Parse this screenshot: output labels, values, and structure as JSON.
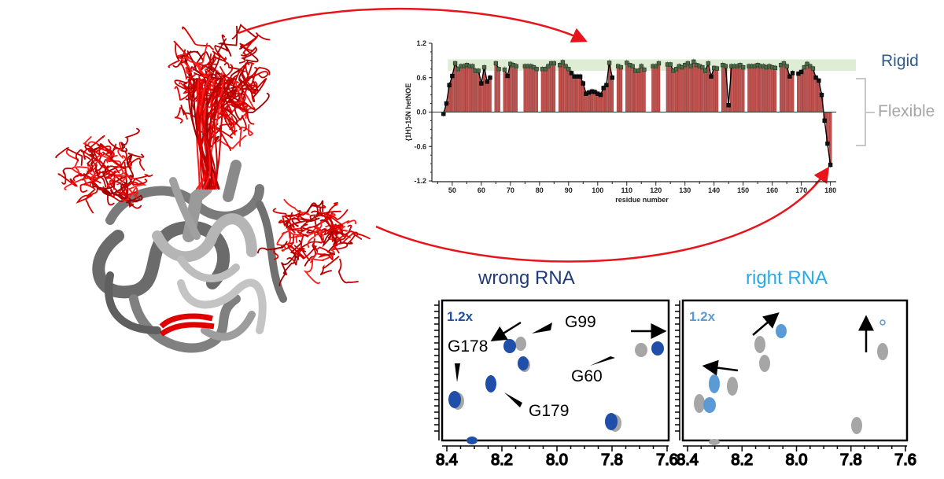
{
  "colors": {
    "bar": "#c0504d",
    "rigid_band": "#dcebd0",
    "rigid_text": "#2f5b8a",
    "flexible_text": "#a6a6a6",
    "wrong_title": "#1f3a7a",
    "right_title": "#29a9e6",
    "wrong_peak": "#1f4fa8",
    "right_peak": "#5b9bd5",
    "ref_peak": "#a6a6a6",
    "arrow_red": "#e8141b"
  },
  "chart_data": {
    "type": "bar",
    "title": "",
    "xlabel": "residue number",
    "ylabel": "{1H}-15N hetNOE",
    "ylim": [
      -1.2,
      1.2
    ],
    "xlim": [
      43,
      182
    ],
    "yticks": [
      "1.2",
      "0.6",
      "0.0",
      "-0.6",
      "-1.2"
    ],
    "ytick_values": [
      1.2,
      0.6,
      0,
      -0.6,
      -1.2
    ],
    "xticks": [
      "50",
      "60",
      "70",
      "80",
      "90",
      "100",
      "110",
      "120",
      "130",
      "140",
      "150",
      "160",
      "170",
      "180"
    ],
    "rigid_band": [
      0.72,
      0.92
    ],
    "start_residue": 47,
    "values": [
      -0.03,
      0.15,
      0.47,
      0.63,
      0.85,
      0.75,
      0.8,
      0.8,
      0.82,
      0.8,
      0.8,
      0.72,
      0.72,
      0.5,
      0.78,
      0.53,
      0.6,
      null,
      0.85,
      0.75,
      null,
      0.74,
      0.63,
      0.84,
      0.82,
      0.8,
      null,
      null,
      0.8,
      0.8,
      0.8,
      0.78,
      0.75,
      null,
      0.75,
      0.75,
      0.8,
      0.85,
      0.85,
      null,
      0.82,
      0.87,
      0.8,
      0.75,
      0.68,
      0.62,
      0.62,
      0.62,
      0.5,
      0.32,
      0.34,
      0.36,
      0.35,
      0.32,
      0.3,
      0.42,
      0.47,
      0.86,
      0.6,
      null,
      0.8,
      0.78,
      null,
      0.86,
      0.82,
      0.8,
      0.72,
      0.72,
      0.8,
      0.74,
      null,
      null,
      0.8,
      0.8,
      0.85,
      null,
      null,
      0.83,
      0.83,
      0.72,
      0.75,
      0.8,
      0.78,
      0.82,
      0.85,
      0.8,
      0.88,
      0.82,
      0.8,
      0.78,
      0.72,
      0.85,
      0.62,
      0.77,
      0.76,
      null,
      0.82,
      0.8,
      0.12,
      0.8,
      0.8,
      0.8,
      0.82,
      0.78,
      null,
      0.8,
      0.8,
      0.8,
      0.82,
      0.8,
      0.8,
      0.78,
      0.8,
      0.78,
      0.77,
      null,
      0.82,
      0.85,
      0.8,
      0.62,
      0.68,
      null,
      0.67,
      0.7,
      0.78,
      0.84,
      0.8,
      0.76,
      0.6,
      0.55,
      0.3,
      -0.15,
      -0.55,
      -0.92
    ],
    "annotations": {
      "rigid": "Rigid",
      "flexible": "Flexible"
    }
  },
  "spectra": {
    "wrong": {
      "title": "wrong RNA",
      "scale": "1.2x",
      "labels": [
        "G99",
        "G178",
        "G60",
        "G179"
      ]
    },
    "right": {
      "title": "right RNA",
      "scale": "1.2x"
    },
    "xticks": [
      "8.4",
      "8.2",
      "8.0",
      "7.8",
      "7.6"
    ]
  }
}
